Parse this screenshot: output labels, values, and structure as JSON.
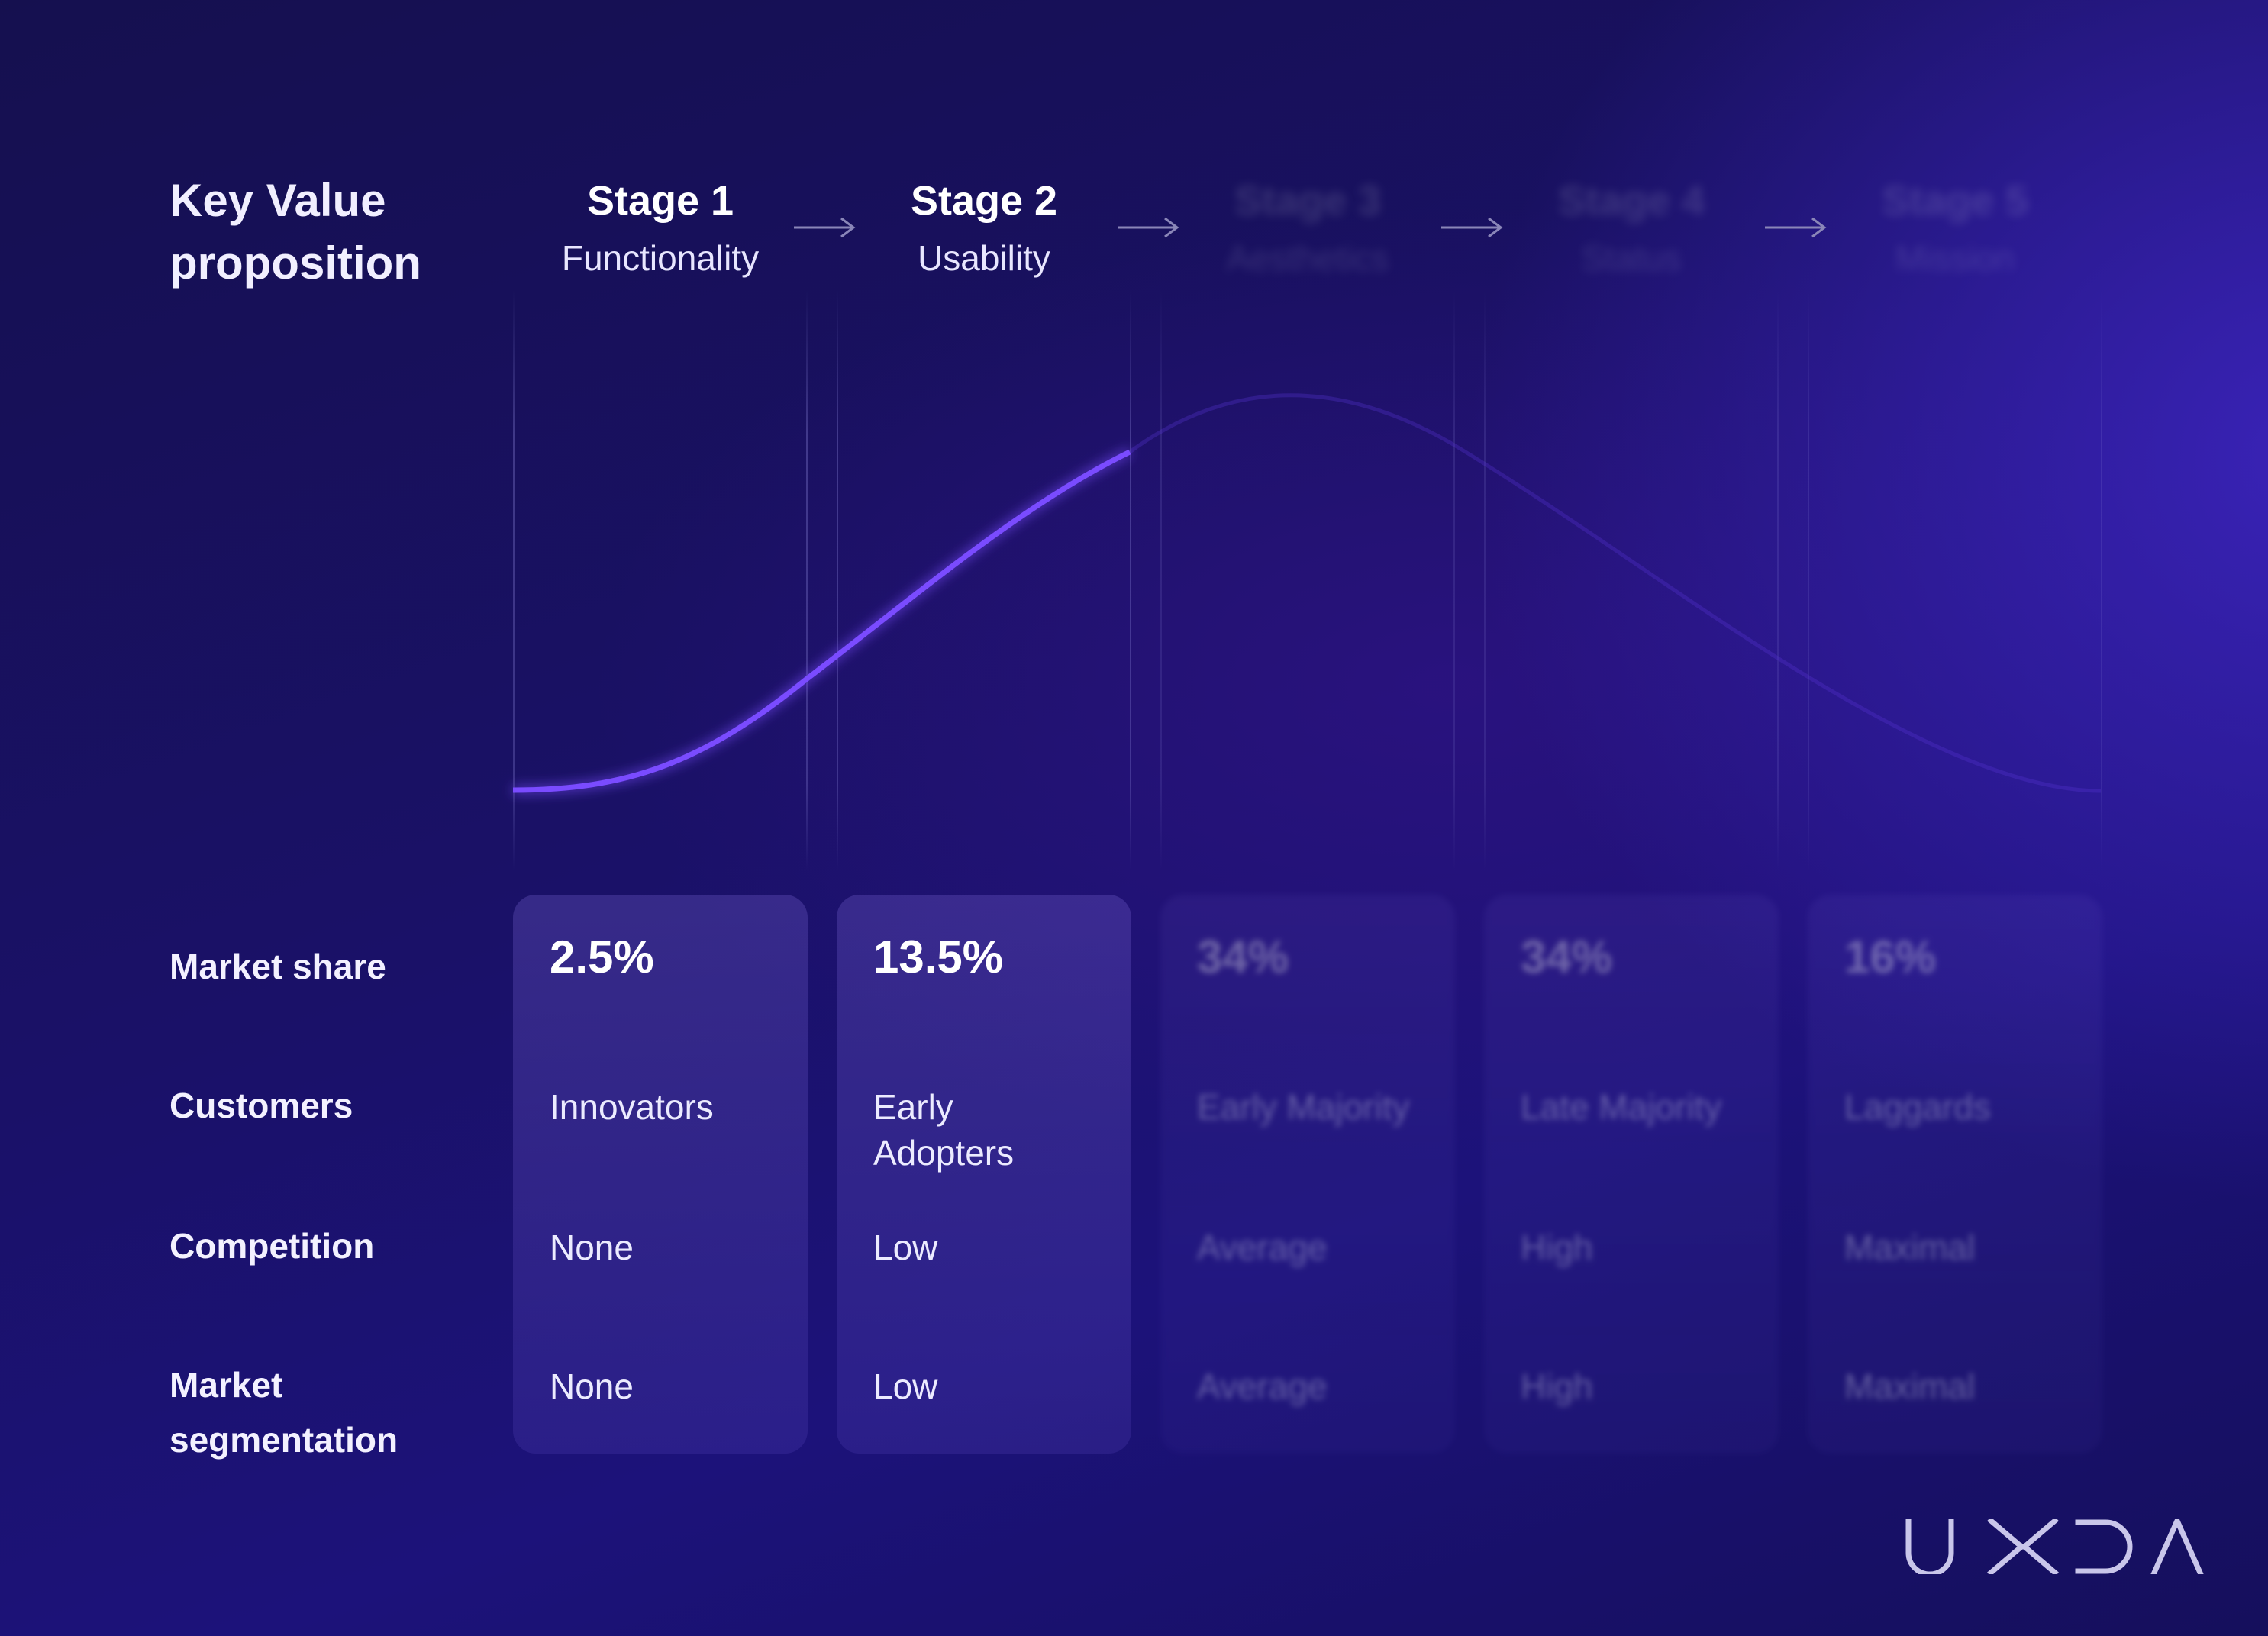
{
  "title": "Key Value proposition",
  "stages": [
    {
      "name": "Stage 1",
      "subtitle": "Functionality",
      "market_share": "2.5%",
      "customers": "Innovators",
      "competition": "None",
      "market_segmentation": "None",
      "visible": true
    },
    {
      "name": "Stage 2",
      "subtitle": "Usability",
      "market_share": "13.5%",
      "customers": "Early Adopters",
      "competition": "Low",
      "market_segmentation": "Low",
      "visible": true
    },
    {
      "name": "Stage 3",
      "subtitle": "Aesthetics",
      "market_share": "34%",
      "customers": "Early Majority",
      "competition": "Average",
      "market_segmentation": "Average",
      "visible": false
    },
    {
      "name": "Stage 4",
      "subtitle": "Status",
      "market_share": "34%",
      "customers": "Late Majority",
      "competition": "High",
      "market_segmentation": "High",
      "visible": false
    },
    {
      "name": "Stage 5",
      "subtitle": "Mission",
      "market_share": "16%",
      "customers": "Laggards",
      "competition": "Maximal",
      "market_segmentation": "Maximal",
      "visible": false
    }
  ],
  "row_labels": {
    "market_share": "Market share",
    "customers": "Customers",
    "competition": "Competition",
    "market_segmentation": "Market segmentation"
  },
  "logo_text": "UXDA",
  "colors": {
    "background": "#1a1168",
    "curve": "#6a3dff",
    "card": "#3b2f8f",
    "text": "#ffffff"
  }
}
